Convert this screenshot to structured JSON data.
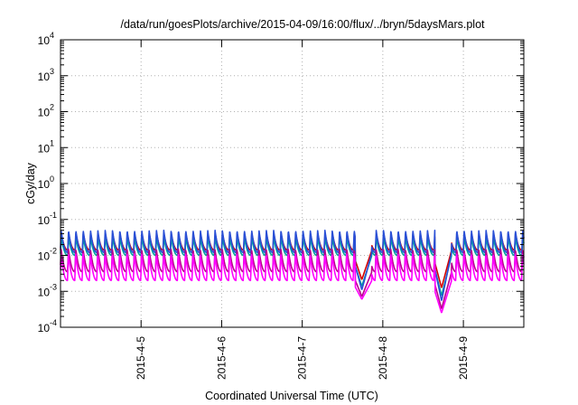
{
  "chart_data": {
    "type": "line",
    "title": "/data/run/goesPlots/archive/2015-04-09/16:00/flux/../bryn/5daysMars.plot",
    "xlabel": "Coordinated Universal Time (UTC)",
    "ylabel": "cGy/day",
    "yscale": "log",
    "ylim_exponent": [
      -4,
      4
    ],
    "y_ticks": [
      {
        "base": "10",
        "exp": "-4",
        "value": 0.0001
      },
      {
        "base": "10",
        "exp": "-3",
        "value": 0.001
      },
      {
        "base": "10",
        "exp": "-2",
        "value": 0.01
      },
      {
        "base": "10",
        "exp": "-1",
        "value": 0.1
      },
      {
        "base": "10",
        "exp": "0",
        "value": 1
      },
      {
        "base": "10",
        "exp": "1",
        "value": 10
      },
      {
        "base": "10",
        "exp": "2",
        "value": 100
      },
      {
        "base": "10",
        "exp": "3",
        "value": 1000
      },
      {
        "base": "10",
        "exp": "4",
        "value": 10000
      }
    ],
    "xlim": [
      "2015-04-04 00:00",
      "2015-04-09 18:00"
    ],
    "x_ticks": [
      "2015-4-5",
      "2015-4-6",
      "2015-4-7",
      "2015-4-8",
      "2015-4-9"
    ],
    "grid": true,
    "legend": "none",
    "pattern": {
      "description_free": true,
      "cycles_per_day": 11,
      "dips": [
        {
          "time": "2015-04-07 17:45",
          "min_value": 0.0006
        },
        {
          "time": "2015-04-08 17:30",
          "min_value": 0.00025
        }
      ]
    },
    "series": [
      {
        "color": "#d40000",
        "peak": 0.04,
        "trough": 0.014
      },
      {
        "color": "#00a0a0",
        "peak": 0.032,
        "trough": 0.01
      },
      {
        "color": "#2a4fd6",
        "peak": 0.05,
        "trough": 0.012
      },
      {
        "color": "#b8008c",
        "peak": 0.015,
        "trough": 0.0035
      },
      {
        "color": "#ff00ff",
        "peak": 0.011,
        "trough": 0.002
      }
    ]
  }
}
